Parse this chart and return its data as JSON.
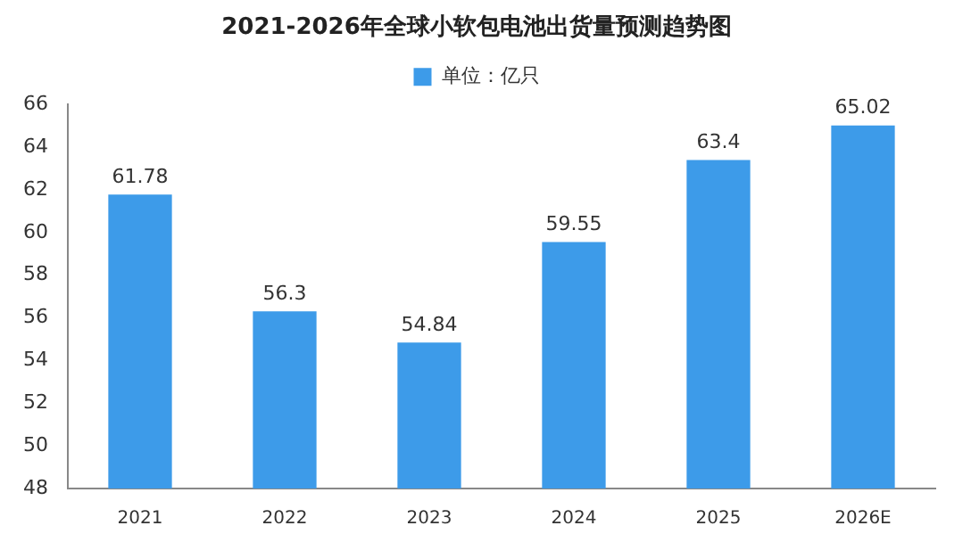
{
  "chart_data": {
    "type": "bar",
    "title": "2021-2026年全球小软包电池出货量预测趋势图",
    "categories": [
      "2021",
      "2022",
      "2023",
      "2024",
      "2025",
      "2026E"
    ],
    "series": [
      {
        "name": "单位：亿只",
        "color": "#3d9be9",
        "values": [
          61.78,
          56.3,
          54.84,
          59.55,
          63.4,
          65.02
        ]
      }
    ],
    "ylim": [
      48,
      66
    ],
    "yticks": [
      48,
      50,
      52,
      54,
      56,
      58,
      60,
      62,
      64,
      66
    ],
    "grid": false,
    "legend": "top",
    "data_labels": true
  }
}
